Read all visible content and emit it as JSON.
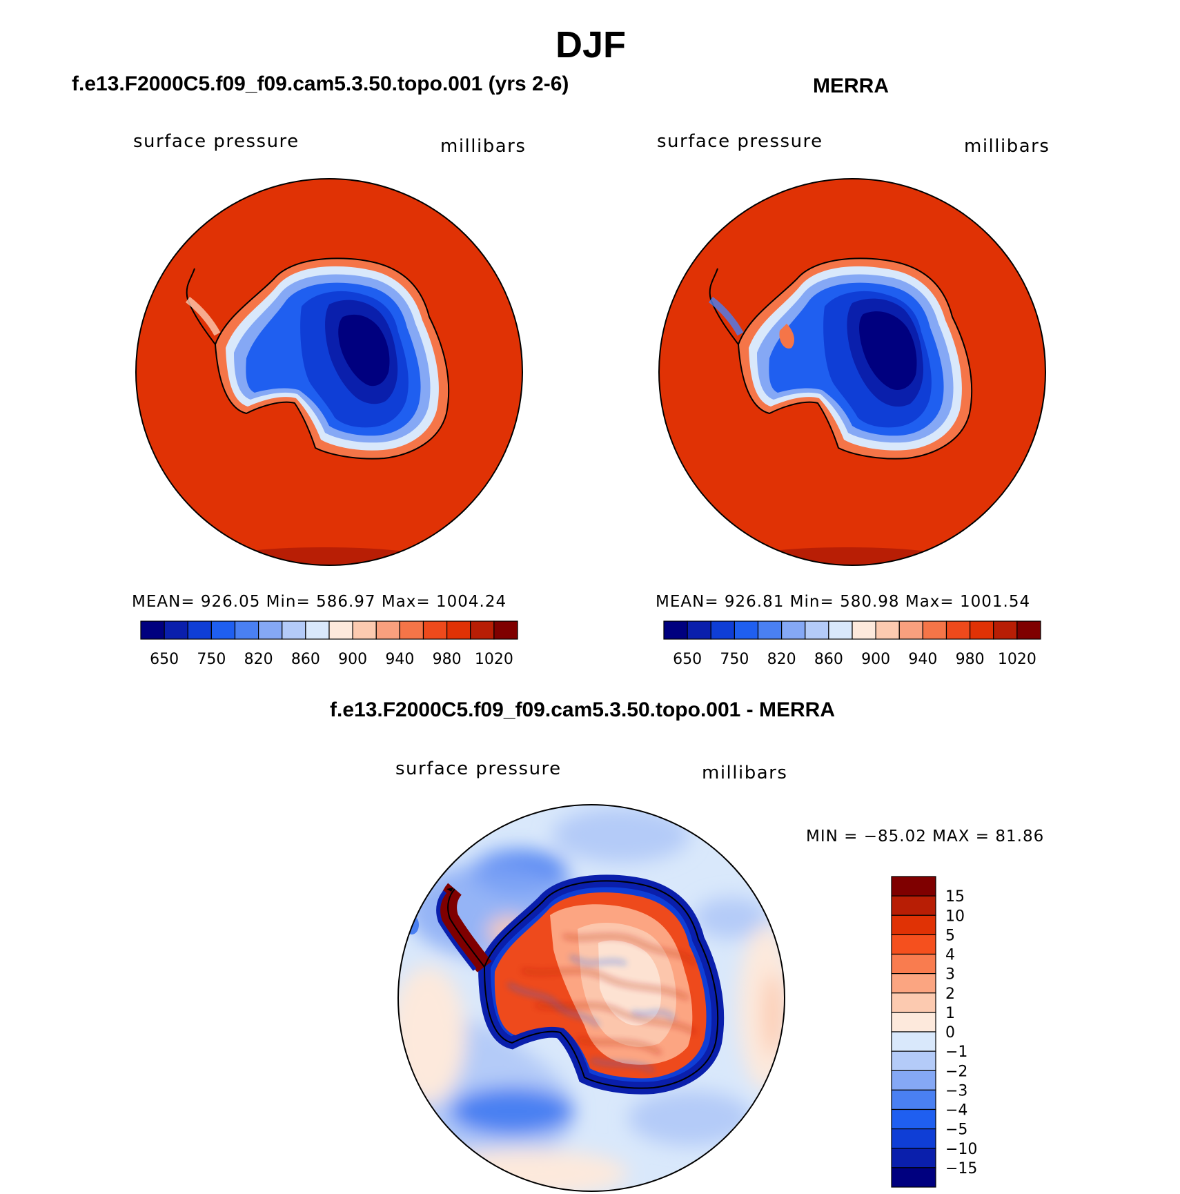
{
  "figure": {
    "title": "DJF"
  },
  "palette": {
    "ocean_fill": "#e03205",
    "coastline": "#000000"
  },
  "chart_data": [
    {
      "type": "heatmap",
      "id": "model",
      "title": "f.e13.F2000C5.f09_f09.cam5.3.50.topo.001 (yrs 2-6)",
      "variable_label": "surface pressure",
      "units_label": "millibars",
      "stats_text": "MEAN=  926.05    Min=  586.97    Max=  1004.24",
      "stats": {
        "mean": 926.05,
        "min": 586.97,
        "max": 1004.24
      },
      "projection": "south polar stereographic",
      "colorbar": {
        "orientation": "horizontal",
        "colors": [
          "#00007f",
          "#0a1fac",
          "#0f3ed6",
          "#1f5ff0",
          "#4a80f2",
          "#85a8f5",
          "#b4cbf8",
          "#d9e8fb",
          "#fde9dc",
          "#fccab0",
          "#f9a07e",
          "#f57548",
          "#ee4a1c",
          "#e03205",
          "#b81e05",
          "#7f0000"
        ],
        "tick_labels": [
          "650",
          "750",
          "820",
          "860",
          "900",
          "940",
          "980",
          "1020"
        ]
      }
    },
    {
      "type": "heatmap",
      "id": "obs",
      "title": "MERRA",
      "variable_label": "surface pressure",
      "units_label": "millibars",
      "stats_text": "MEAN=  926.81    Min=  580.98    Max=  1001.54",
      "stats": {
        "mean": 926.81,
        "min": 580.98,
        "max": 1001.54
      },
      "projection": "south polar stereographic",
      "colorbar": {
        "orientation": "horizontal",
        "colors": [
          "#00007f",
          "#0a1fac",
          "#0f3ed6",
          "#1f5ff0",
          "#4a80f2",
          "#85a8f5",
          "#b4cbf8",
          "#d9e8fb",
          "#fde9dc",
          "#fccab0",
          "#f9a07e",
          "#f57548",
          "#ee4a1c",
          "#e03205",
          "#b81e05",
          "#7f0000"
        ],
        "tick_labels": [
          "650",
          "750",
          "820",
          "860",
          "900",
          "940",
          "980",
          "1020"
        ]
      }
    },
    {
      "type": "heatmap",
      "id": "diff",
      "title": "f.e13.F2000C5.f09_f09.cam5.3.50.topo.001 - MERRA",
      "variable_label": "surface pressure",
      "units_label": "millibars",
      "stats_text": "MIN = −85.02 MAX =   81.86",
      "stats": {
        "min": -85.02,
        "max": 81.86
      },
      "projection": "south polar stereographic",
      "colorbar": {
        "orientation": "vertical",
        "colors": [
          "#7f0000",
          "#b81e05",
          "#e03205",
          "#f5501e",
          "#f97c4f",
          "#fba581",
          "#fccab0",
          "#fde9dc",
          "#d9e8fb",
          "#b4cbf8",
          "#85a8f5",
          "#4a80f2",
          "#1f5ff0",
          "#0f3ed6",
          "#0a1fac",
          "#00007f"
        ],
        "tick_labels": [
          "15",
          "10",
          "5",
          "4",
          "3",
          "2",
          "1",
          "0",
          "−1",
          "−2",
          "−3",
          "−4",
          "−5",
          "−10",
          "−15"
        ]
      }
    }
  ]
}
